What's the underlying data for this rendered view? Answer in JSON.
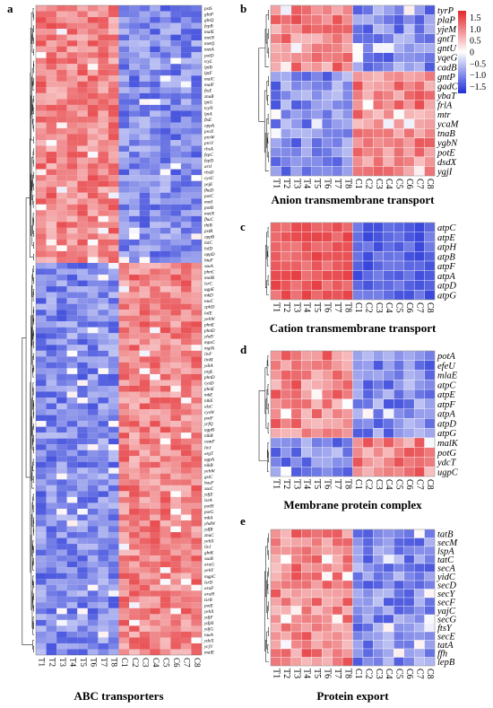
{
  "chart_data": [
    {
      "panel": "a",
      "type": "heatmap",
      "title": "ABC transporters",
      "columns": [
        "T1",
        "T2",
        "T3",
        "T4",
        "T5",
        "T6",
        "T7",
        "T8",
        "C1",
        "C2",
        "C3",
        "C4",
        "C5",
        "C6",
        "C7",
        "C8"
      ],
      "rows": [
        "pstS",
        "glnP",
        "glnQ",
        "fepB",
        "malE",
        "metN",
        "metQ",
        "metA",
        "potD",
        "tcyL",
        "lptB",
        "lptF",
        "malC",
        "malF",
        "ftsX",
        "znuB",
        "lptG",
        "tcyN",
        "lptA",
        "ftsE",
        "oppA",
        "proX",
        "proW",
        "proV",
        "rbsA",
        "fepC",
        "fepD",
        "artJ",
        "rbsD",
        "cysU",
        "yejE",
        "fhuD",
        "potC",
        "metI",
        "potB",
        "metN",
        "fhuC",
        "thiB",
        "pstB",
        "oppB",
        "lolC",
        "lolD",
        "oppD",
        "btuF",
        "ssuA",
        "phnC",
        "malB",
        "lsrC",
        "ugpE",
        "mkD",
        "tauC",
        "yphD",
        "lolE",
        "yehW",
        "phnE",
        "phnD",
        "yhdY",
        "mpsC",
        "mglA",
        "livF",
        "livM",
        "ydiA",
        "yzgL",
        "phnD",
        "cysD",
        "phnE",
        "mkE",
        "nikE",
        "alsC",
        "cysW",
        "potF",
        "yrfQ",
        "ugpB",
        "nikB",
        "osmF",
        "livJ",
        "argT",
        "ugpA",
        "nikB",
        "yehW",
        "gsiC",
        "basF",
        "ssuC",
        "ydjE",
        "lsrA",
        "potH",
        "potG",
        "mkA",
        "yhdW",
        "ydfR",
        "znuC",
        "yehX",
        "livJ",
        "glnK",
        "ssuB",
        "araG",
        "yehY",
        "mgpC",
        "lsrD",
        "araF",
        "araH",
        "lsrB",
        "potE",
        "yehX",
        "ydjF",
        "ydjH",
        "ydjG",
        "tauA",
        "ydeX",
        "ycjV",
        "malE"
      ],
      "row_groups": [
        {
          "rows": "pstS–btuF",
          "pattern": "high in T1–T8, low in C1–C8"
        },
        {
          "rows": "ssuA–malE",
          "pattern": "low in T1–T8, high in C1–C8"
        }
      ]
    },
    {
      "panel": "b",
      "type": "heatmap",
      "title": "Anion transmembrane transport",
      "columns": [
        "T1",
        "T2",
        "T3",
        "T4",
        "T5",
        "T6",
        "T7",
        "T8",
        "C1",
        "C2",
        "C3",
        "C4",
        "C5",
        "C6",
        "C7",
        "C8"
      ],
      "rows": [
        "tyrP",
        "plaP",
        "yjeM",
        "gntT",
        "gntU",
        "yqeG",
        "cadB",
        "gntP",
        "gadC",
        "ybaT",
        "frlA",
        "mtr",
        "ycaM",
        "tnaB",
        "ygbN",
        "potE",
        "dsdX",
        "ygjI"
      ],
      "row_groups": [
        {
          "rows": "tyrP–cadB",
          "pattern": "high in T1–T8, low in C1–C8"
        },
        {
          "rows": "gntP–ygjI",
          "pattern": "low in T1–T8, high in C1–C8"
        }
      ],
      "colorbar": {
        "ticks": [
          1.5,
          1.0,
          0.5,
          0,
          -0.5,
          -1.0,
          -1.5
        ],
        "tick_labels": [
          "1.5",
          "1.0",
          "0.5",
          "0",
          "−0.5",
          "−1.0",
          "−1.5"
        ],
        "min": -1.8,
        "max": 1.8,
        "colors": [
          "#1f2fd6",
          "#ffffff",
          "#e3262a"
        ]
      }
    },
    {
      "panel": "c",
      "type": "heatmap",
      "title": "Cation transmembrane transport",
      "columns": [
        "T1",
        "T2",
        "T3",
        "T4",
        "T5",
        "T6",
        "T7",
        "T8",
        "C1",
        "C2",
        "C3",
        "C4",
        "C5",
        "C6",
        "C7",
        "C8"
      ],
      "rows": [
        "atpC",
        "atpE",
        "atpH",
        "atpB",
        "atpF",
        "atpA",
        "atpD",
        "atpG"
      ],
      "row_groups": [
        {
          "rows": "atpC–atpG",
          "pattern": "strongly high in T1–T8, strongly low in C1–C8"
        }
      ]
    },
    {
      "panel": "d",
      "type": "heatmap",
      "title": "Membrane protein complex",
      "columns": [
        "T1",
        "T2",
        "T3",
        "T4",
        "T5",
        "T6",
        "T7",
        "T8",
        "C1",
        "C2",
        "C3",
        "C4",
        "C5",
        "C6",
        "C7",
        "C8"
      ],
      "rows": [
        "potA",
        "efeU",
        "mlaE",
        "atpC",
        "atpE",
        "atpF",
        "atpA",
        "atpD",
        "atpG",
        "malK",
        "potG",
        "ydcT",
        "ugpC"
      ],
      "row_groups": [
        {
          "rows": "potA–atpG",
          "pattern": "high in T1–T8, low in C1–C8"
        },
        {
          "rows": "malK–ugpC",
          "pattern": "low in T1–T8, high in C1–C8"
        }
      ]
    },
    {
      "panel": "e",
      "type": "heatmap",
      "title": "Protein export",
      "columns": [
        "T1",
        "T2",
        "T3",
        "T4",
        "T5",
        "T6",
        "T7",
        "T8",
        "C1",
        "C2",
        "C3",
        "C4",
        "C5",
        "C6",
        "C7",
        "C8"
      ],
      "rows": [
        "tatB",
        "secM",
        "lspA",
        "tatC",
        "secA",
        "yidC",
        "secD",
        "secY",
        "secF",
        "yajC",
        "secG",
        "ftsY",
        "secE",
        "tatA",
        "ffh",
        "lepB"
      ],
      "row_groups": [
        {
          "rows": "tatB–lepB",
          "pattern": "high in T1–T8, low in C1–C8"
        }
      ]
    }
  ]
}
